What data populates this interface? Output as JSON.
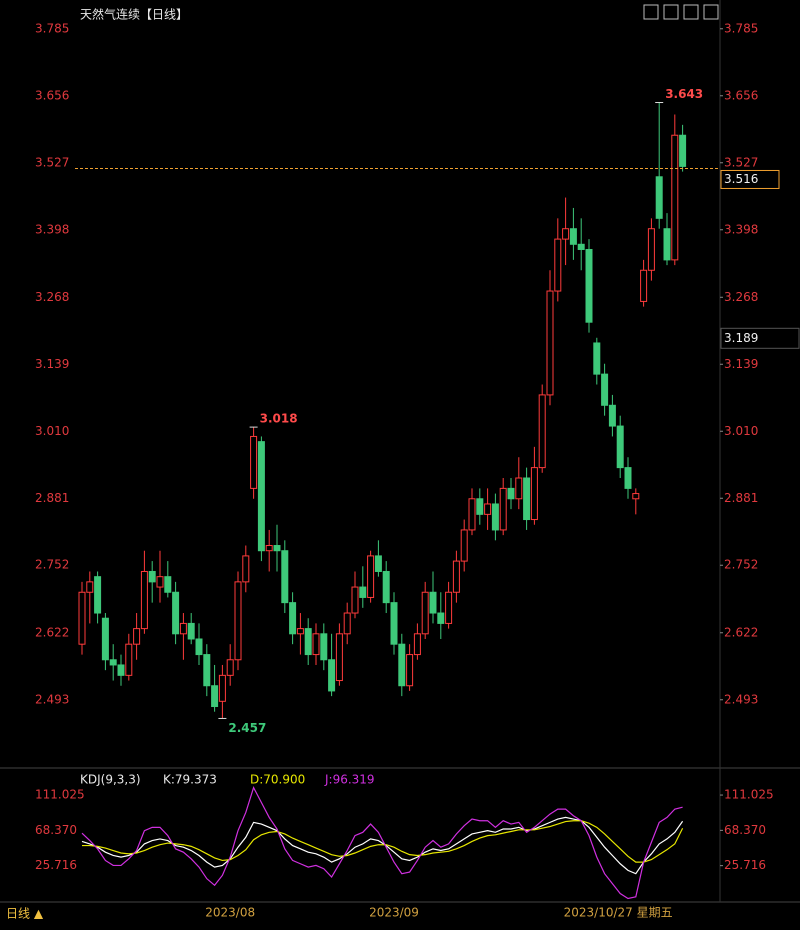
{
  "chart_data": [
    {
      "type": "candlestick",
      "title": "天然气连续【日线】",
      "categories": [
        null,
        null,
        null,
        null,
        null,
        null,
        null,
        null,
        null,
        null,
        null,
        null,
        null,
        null,
        null,
        null,
        null,
        null,
        null,
        "2023/08",
        null,
        null,
        null,
        null,
        null,
        null,
        null,
        null,
        null,
        null,
        null,
        null,
        null,
        null,
        null,
        null,
        null,
        null,
        null,
        null,
        "2023/09",
        null,
        null,
        null,
        null,
        null,
        null,
        null,
        null,
        null,
        null,
        null,
        null,
        null,
        null,
        null,
        null,
        null,
        null,
        null,
        null,
        null,
        null,
        null,
        null,
        null,
        null,
        null,
        null,
        null,
        null,
        null,
        null,
        null,
        null,
        null,
        null,
        "2023/10/27 星期五"
      ],
      "open": [
        2.6,
        2.7,
        2.73,
        2.65,
        2.57,
        2.56,
        2.54,
        2.6,
        2.63,
        2.74,
        2.71,
        2.73,
        2.7,
        2.62,
        2.64,
        2.61,
        2.58,
        2.52,
        2.49,
        2.54,
        2.57,
        2.72,
        2.9,
        2.99,
        2.78,
        2.79,
        2.78,
        2.68,
        2.62,
        2.63,
        2.58,
        2.62,
        2.57,
        2.53,
        2.62,
        2.66,
        2.71,
        2.69,
        2.77,
        2.74,
        2.68,
        2.6,
        2.52,
        2.58,
        2.62,
        2.7,
        2.66,
        2.64,
        2.7,
        2.76,
        2.82,
        2.88,
        2.85,
        2.87,
        2.82,
        2.9,
        2.88,
        2.92,
        2.84,
        2.94,
        3.08,
        3.28,
        3.38,
        3.4,
        3.37,
        3.36,
        3.18,
        3.12,
        3.06,
        3.02,
        2.94,
        2.88,
        3.26,
        3.32,
        3.5,
        3.4,
        3.34,
        3.58
      ],
      "high": [
        2.72,
        2.74,
        2.74,
        2.66,
        2.6,
        2.58,
        2.62,
        2.66,
        2.78,
        2.76,
        2.78,
        2.76,
        2.72,
        2.66,
        2.66,
        2.64,
        2.6,
        2.56,
        2.56,
        2.6,
        2.74,
        2.79,
        3.018,
        3.0,
        2.82,
        2.83,
        2.8,
        2.7,
        2.66,
        2.65,
        2.64,
        2.64,
        2.62,
        2.64,
        2.68,
        2.74,
        2.75,
        2.78,
        2.8,
        2.76,
        2.7,
        2.62,
        2.6,
        2.64,
        2.72,
        2.74,
        2.7,
        2.72,
        2.78,
        2.84,
        2.9,
        2.9,
        2.9,
        2.89,
        2.92,
        2.92,
        2.96,
        2.94,
        2.98,
        3.1,
        3.32,
        3.42,
        3.46,
        3.44,
        3.42,
        3.38,
        3.19,
        3.14,
        3.08,
        3.04,
        2.96,
        2.9,
        3.34,
        3.42,
        3.643,
        3.43,
        3.62,
        3.6
      ],
      "low": [
        2.58,
        2.64,
        2.64,
        2.55,
        2.53,
        2.52,
        2.53,
        2.57,
        2.62,
        2.68,
        2.68,
        2.69,
        2.6,
        2.57,
        2.6,
        2.56,
        2.5,
        2.47,
        2.457,
        2.52,
        2.55,
        2.7,
        2.88,
        2.76,
        2.74,
        2.74,
        2.66,
        2.6,
        2.58,
        2.56,
        2.56,
        2.55,
        2.5,
        2.52,
        2.6,
        2.65,
        2.67,
        2.68,
        2.73,
        2.66,
        2.58,
        2.5,
        2.51,
        2.57,
        2.61,
        2.64,
        2.61,
        2.63,
        2.68,
        2.74,
        2.81,
        2.83,
        2.82,
        2.8,
        2.81,
        2.86,
        2.86,
        2.82,
        2.83,
        2.93,
        3.06,
        3.26,
        3.33,
        3.34,
        3.32,
        3.2,
        3.1,
        3.04,
        3.0,
        2.92,
        2.88,
        2.85,
        3.25,
        3.3,
        3.4,
        3.33,
        3.33,
        3.51
      ],
      "close": [
        2.7,
        2.72,
        2.66,
        2.57,
        2.56,
        2.54,
        2.6,
        2.63,
        2.74,
        2.72,
        2.73,
        2.7,
        2.62,
        2.64,
        2.61,
        2.58,
        2.52,
        2.48,
        2.54,
        2.57,
        2.72,
        2.77,
        3.0,
        2.78,
        2.79,
        2.78,
        2.68,
        2.62,
        2.63,
        2.58,
        2.62,
        2.57,
        2.51,
        2.62,
        2.66,
        2.71,
        2.69,
        2.77,
        2.74,
        2.68,
        2.6,
        2.52,
        2.58,
        2.62,
        2.7,
        2.66,
        2.64,
        2.7,
        2.76,
        2.82,
        2.88,
        2.85,
        2.87,
        2.82,
        2.9,
        2.88,
        2.92,
        2.84,
        2.94,
        3.08,
        3.28,
        3.38,
        3.4,
        3.37,
        3.36,
        3.22,
        3.12,
        3.06,
        3.02,
        2.94,
        2.9,
        2.89,
        3.32,
        3.4,
        3.42,
        3.34,
        3.58,
        3.52
      ],
      "up_color": "#ff3b3b",
      "down_color": "#3ec97a",
      "ylim": [
        2.377,
        3.825
      ],
      "yticks": [
        2.493,
        2.622,
        2.752,
        2.881,
        {
          "value": 3.01,
          "label": "3.010"
        },
        3.139,
        3.268,
        3.398,
        3.527,
        3.656,
        3.785
      ],
      "annotations": [
        {
          "index": 74,
          "value": 3.643,
          "label": "3.643",
          "color": "#ff4b4b"
        },
        {
          "index": 22,
          "value": 3.018,
          "label": "3.018",
          "color": "#ff4b4b"
        },
        {
          "index": 18,
          "value": 2.457,
          "label": "2.457",
          "color": "#3ec97a"
        }
      ],
      "last_price": {
        "value": 3.516,
        "label": "3.516",
        "color": "#f0a030"
      },
      "cursor_price": {
        "value": 3.189,
        "label": "3.189"
      },
      "period": "日线 ▲"
    },
    {
      "type": "line",
      "title": "KDJ(9,3,3)",
      "legend_labels": [
        "K:79.373",
        "D:70.900",
        "J:96.319"
      ],
      "series": [
        {
          "name": "K",
          "color": "#ffffff",
          "values": [
            55,
            52,
            48,
            42,
            38,
            36,
            38,
            42,
            52,
            56,
            58,
            56,
            50,
            48,
            44,
            38,
            30,
            24,
            26,
            34,
            48,
            60,
            78,
            76,
            72,
            68,
            58,
            50,
            46,
            42,
            40,
            36,
            30,
            34,
            40,
            48,
            52,
            58,
            56,
            50,
            42,
            34,
            32,
            36,
            42,
            46,
            44,
            46,
            52,
            58,
            64,
            66,
            68,
            66,
            70,
            70,
            72,
            68,
            70,
            74,
            78,
            82,
            84,
            82,
            80,
            72,
            60,
            48,
            38,
            28,
            20,
            16,
            30,
            40,
            52,
            58,
            66,
            79.373
          ]
        },
        {
          "name": "D",
          "color": "#e6e600",
          "values": [
            50,
            50,
            49,
            47,
            44,
            41,
            40,
            41,
            44,
            48,
            51,
            53,
            52,
            51,
            49,
            45,
            40,
            35,
            32,
            33,
            38,
            45,
            57,
            63,
            66,
            67,
            64,
            59,
            55,
            51,
            47,
            43,
            39,
            37,
            38,
            41,
            45,
            49,
            51,
            51,
            48,
            43,
            39,
            38,
            39,
            41,
            42,
            43,
            46,
            50,
            55,
            59,
            62,
            63,
            65,
            67,
            69,
            69,
            69,
            71,
            73,
            76,
            79,
            80,
            80,
            77,
            72,
            64,
            55,
            46,
            37,
            30,
            30,
            33,
            39,
            45,
            52,
            70.9
          ]
        },
        {
          "name": "J",
          "color": "#d030e0",
          "values": [
            65,
            56,
            46,
            32,
            26,
            26,
            34,
            44,
            68,
            72,
            72,
            62,
            46,
            42,
            34,
            24,
            10,
            2,
            14,
            36,
            68,
            90,
            120,
            102,
            84,
            70,
            46,
            32,
            28,
            24,
            26,
            22,
            12,
            28,
            44,
            62,
            66,
            76,
            66,
            48,
            30,
            16,
            18,
            32,
            48,
            56,
            48,
            52,
            64,
            74,
            82,
            80,
            80,
            72,
            80,
            76,
            78,
            66,
            72,
            80,
            88,
            94,
            94,
            86,
            80,
            62,
            36,
            16,
            4,
            -8,
            -14,
            -12,
            30,
            54,
            78,
            84,
            94,
            96.319
          ]
        }
      ],
      "ylim": [
        -17,
        128
      ],
      "yticks": [
        {
          "value": 25.716,
          "label": "25.716"
        },
        {
          "value": 68.37,
          "label": "68.370"
        },
        {
          "value": 111.025,
          "label": "111.025"
        }
      ]
    }
  ]
}
